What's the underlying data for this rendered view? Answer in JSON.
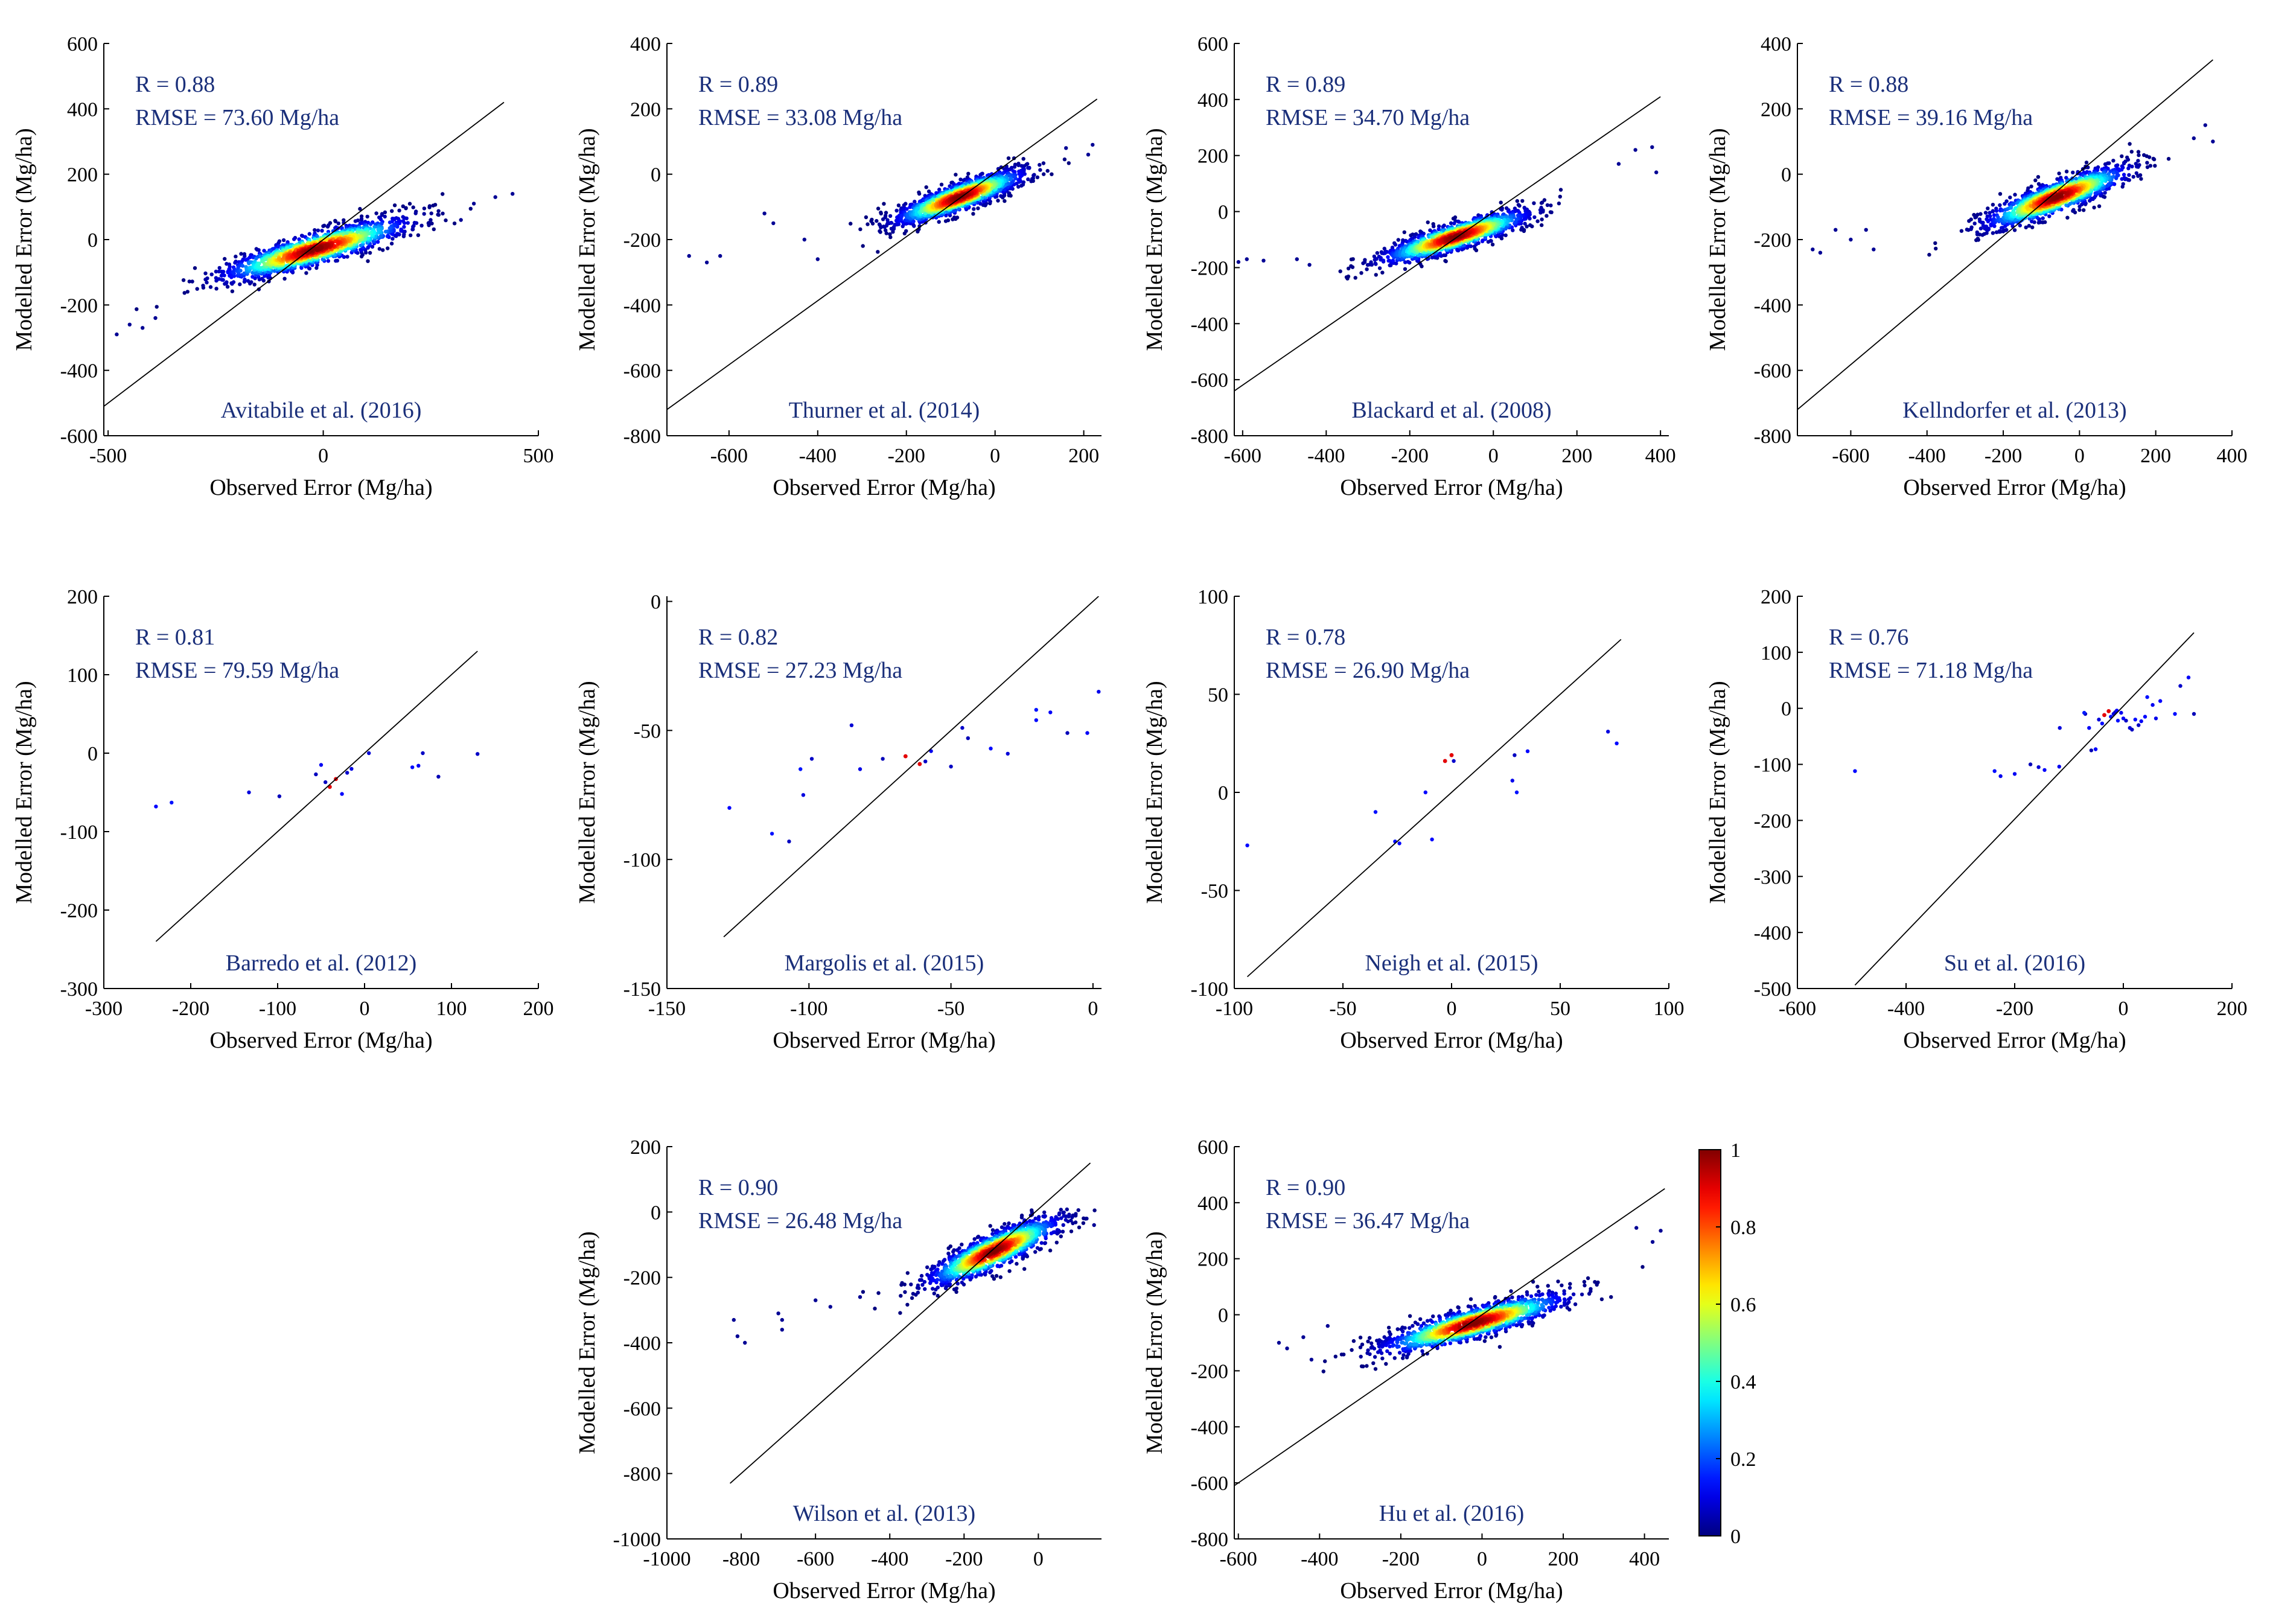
{
  "figure": {
    "xlabel": "Observed Error (Mg/ha)",
    "ylabel": "Modelled Error (Mg/ha)"
  },
  "colors": {
    "annotation": "#1a2f7a",
    "axis": "#000000",
    "line": "#000000"
  },
  "colorbar": {
    "min": 0,
    "max": 1,
    "ticks": [
      "0",
      "0.2",
      "0.4",
      "0.6",
      "0.8",
      "1"
    ],
    "colormap": "jet"
  },
  "chart_data": [
    {
      "type": "scatter",
      "title": "Avitabile et al. (2016)",
      "r": "R = 0.88",
      "rmse": "RMSE = 73.60 Mg/ha",
      "xlim": [
        -510,
        500
      ],
      "ylim": [
        -600,
        600
      ],
      "xticks": [
        -500,
        0,
        500
      ],
      "yticks": [
        -600,
        -400,
        -200,
        0,
        200,
        400,
        600
      ],
      "x_range": [
        -480,
        480
      ],
      "y_range": [
        -280,
        150
      ],
      "cluster": [
        -20,
        -30
      ],
      "spread": [
        110,
        45
      ],
      "n_points": 1300,
      "outliers": [
        [
          -480,
          -290
        ],
        [
          -450,
          -260
        ],
        [
          -420,
          -270
        ],
        [
          -390,
          -240
        ],
        [
          350,
          110
        ],
        [
          440,
          140
        ],
        [
          400,
          130
        ],
        [
          320,
          60
        ]
      ],
      "line": [
        [
          -510,
          -510
        ],
        [
          420,
          420
        ]
      ]
    },
    {
      "type": "scatter",
      "title": "Thurner et al. (2014)",
      "r": "R = 0.89",
      "rmse": "RMSE = 33.08 Mg/ha",
      "xlim": [
        -740,
        240
      ],
      "ylim": [
        -800,
        400
      ],
      "xticks": [
        -600,
        -400,
        -200,
        0,
        200
      ],
      "yticks": [
        -800,
        -600,
        -400,
        -200,
        0,
        200,
        400
      ],
      "x_range": [
        -690,
        230
      ],
      "y_range": [
        -300,
        100
      ],
      "cluster": [
        -80,
        -70
      ],
      "spread": [
        75,
        40
      ],
      "n_points": 1300,
      "outliers": [
        [
          -690,
          -250
        ],
        [
          -650,
          -270
        ],
        [
          -620,
          -250
        ],
        [
          -520,
          -120
        ],
        [
          -500,
          -150
        ],
        [
          -430,
          -200
        ],
        [
          -400,
          -260
        ],
        [
          160,
          80
        ],
        [
          210,
          60
        ],
        [
          220,
          90
        ]
      ],
      "line": [
        [
          -740,
          -720
        ],
        [
          230,
          230
        ]
      ]
    },
    {
      "type": "scatter",
      "title": "Blackard et al. (2008)",
      "r": "R = 0.89",
      "rmse": "RMSE = 34.70 Mg/ha",
      "xlim": [
        -620,
        420
      ],
      "ylim": [
        -800,
        600
      ],
      "xticks": [
        -600,
        -400,
        -200,
        0,
        200,
        400
      ],
      "yticks": [
        -800,
        -600,
        -400,
        -200,
        0,
        200,
        400,
        600
      ],
      "x_range": [
        -600,
        400
      ],
      "y_range": [
        -300,
        230
      ],
      "cluster": [
        -90,
        -90
      ],
      "spread": [
        90,
        45
      ],
      "n_points": 1300,
      "outliers": [
        [
          -610,
          -180
        ],
        [
          -590,
          -170
        ],
        [
          -550,
          -175
        ],
        [
          -470,
          -170
        ],
        [
          -440,
          -190
        ],
        [
          340,
          220
        ],
        [
          380,
          230
        ],
        [
          390,
          140
        ],
        [
          300,
          170
        ]
      ],
      "line": [
        [
          -620,
          -640
        ],
        [
          400,
          410
        ]
      ]
    },
    {
      "type": "scatter",
      "title": "Kellndorfer  et al. (2013)",
      "r": "R = 0.88",
      "rmse": "RMSE = 39.16 Mg/ha",
      "xlim": [
        -740,
        400
      ],
      "ylim": [
        -800,
        400
      ],
      "xticks": [
        -600,
        -400,
        -200,
        0,
        200,
        400
      ],
      "yticks": [
        -800,
        -600,
        -400,
        -200,
        0,
        200,
        400
      ],
      "x_range": [
        -740,
        380
      ],
      "y_range": [
        -320,
        160
      ],
      "cluster": [
        -60,
        -70
      ],
      "spread": [
        95,
        45
      ],
      "n_points": 1300,
      "outliers": [
        [
          -700,
          -230
        ],
        [
          -680,
          -240
        ],
        [
          -640,
          -170
        ],
        [
          -600,
          -200
        ],
        [
          -560,
          -170
        ],
        [
          -540,
          -230
        ],
        [
          330,
          150
        ],
        [
          350,
          100
        ],
        [
          300,
          110
        ]
      ],
      "line": [
        [
          -740,
          -720
        ],
        [
          350,
          350
        ]
      ]
    },
    {
      "type": "scatter",
      "title": "Barredo et al. (2012)",
      "r": "R = 0.81",
      "rmse": "RMSE = 79.59 Mg/ha",
      "xlim": [
        -300,
        200
      ],
      "ylim": [
        -300,
        200
      ],
      "xticks": [
        -300,
        -200,
        -100,
        0,
        100,
        200
      ],
      "yticks": [
        -300,
        -200,
        -100,
        0,
        100,
        200
      ],
      "points": [
        [
          -240,
          -68
        ],
        [
          -222,
          -63
        ],
        [
          -133,
          -50
        ],
        [
          -98,
          -55
        ],
        [
          -56,
          -27
        ],
        [
          -50,
          -15
        ],
        [
          -45,
          -37
        ],
        [
          -40,
          -43
        ],
        [
          -33,
          -33
        ],
        [
          -26,
          -52
        ],
        [
          -20,
          -25
        ],
        [
          -15,
          -20
        ],
        [
          5,
          0
        ],
        [
          55,
          -18
        ],
        [
          62,
          -16
        ],
        [
          67,
          0
        ],
        [
          85,
          -30
        ],
        [
          130,
          -1
        ]
      ],
      "line": [
        [
          -240,
          -240
        ],
        [
          130,
          130
        ]
      ]
    },
    {
      "type": "scatter",
      "title": "Margolis et al. (2015)",
      "r": "R = 0.82",
      "rmse": "RMSE = 27.23 Mg/ha",
      "xlim": [
        -150,
        3
      ],
      "ylim": [
        -150,
        2
      ],
      "xticks": [
        -150,
        -100,
        -50,
        0
      ],
      "yticks": [
        -150,
        -100,
        -50,
        0
      ],
      "points": [
        [
          -128,
          -80
        ],
        [
          -113,
          -90
        ],
        [
          -107,
          -93
        ],
        [
          -103,
          -65
        ],
        [
          -102,
          -75
        ],
        [
          -99,
          -61
        ],
        [
          -85,
          -48
        ],
        [
          -82,
          -65
        ],
        [
          -74,
          -61
        ],
        [
          -66,
          -60
        ],
        [
          -61,
          -63
        ],
        [
          -59,
          -62
        ],
        [
          -57,
          -58
        ],
        [
          -50,
          -64
        ],
        [
          -46,
          -49
        ],
        [
          -44,
          -53
        ],
        [
          -36,
          -57
        ],
        [
          -30,
          -59
        ],
        [
          -20,
          -42
        ],
        [
          -20,
          -46
        ],
        [
          -15,
          -43
        ],
        [
          -9,
          -51
        ],
        [
          -2,
          -51
        ],
        [
          2,
          -35
        ]
      ],
      "line": [
        [
          -130,
          -130
        ],
        [
          2,
          2
        ]
      ]
    },
    {
      "type": "scatter",
      "title": "Neigh et al. (2015)",
      "r": "R = 0.78",
      "rmse": "RMSE = 26.90 Mg/ha",
      "xlim": [
        -100,
        100
      ],
      "ylim": [
        -100,
        100
      ],
      "xticks": [
        -100,
        -50,
        0,
        50,
        100
      ],
      "yticks": [
        -100,
        -50,
        0,
        50,
        100
      ],
      "points": [
        [
          -94,
          -27
        ],
        [
          -35,
          -10
        ],
        [
          -26,
          -25
        ],
        [
          -24,
          -26
        ],
        [
          -12,
          0
        ],
        [
          -9,
          -24
        ],
        [
          -3,
          16
        ],
        [
          0,
          19
        ],
        [
          1,
          16
        ],
        [
          28,
          6
        ],
        [
          29,
          19
        ],
        [
          30,
          0
        ],
        [
          35,
          21
        ],
        [
          72,
          31
        ],
        [
          76,
          25
        ]
      ],
      "line": [
        [
          -94,
          -94
        ],
        [
          78,
          78
        ]
      ]
    },
    {
      "type": "scatter",
      "title": "Su et al. (2016)",
      "r": "R = 0.76",
      "rmse": "RMSE = 71.18 Mg/ha",
      "xlim": [
        -600,
        200
      ],
      "ylim": [
        -500,
        200
      ],
      "xticks": [
        -600,
        -400,
        -200,
        0,
        200
      ],
      "yticks": [
        -500,
        -400,
        -300,
        -200,
        -100,
        0,
        100,
        200
      ],
      "points": [
        [
          -494,
          -112
        ],
        [
          -237,
          -112
        ],
        [
          -226,
          -121
        ],
        [
          -200,
          -117
        ],
        [
          -171,
          -100
        ],
        [
          -156,
          -105
        ],
        [
          -145,
          -110
        ],
        [
          -118,
          -104
        ],
        [
          -117,
          -35
        ],
        [
          -72,
          -8
        ],
        [
          -70,
          -10
        ],
        [
          -63,
          -35
        ],
        [
          -59,
          -75
        ],
        [
          -51,
          -73
        ],
        [
          -45,
          -20
        ],
        [
          -39,
          -27
        ],
        [
          -35,
          -12
        ],
        [
          -27,
          -5
        ],
        [
          -23,
          -15
        ],
        [
          -18,
          -10
        ],
        [
          -15,
          -7
        ],
        [
          -12,
          -4
        ],
        [
          -10,
          -22
        ],
        [
          -4,
          -8
        ],
        [
          0,
          -18
        ],
        [
          5,
          -22
        ],
        [
          12,
          -35
        ],
        [
          16,
          -38
        ],
        [
          22,
          -20
        ],
        [
          28,
          -30
        ],
        [
          33,
          -23
        ],
        [
          40,
          -15
        ],
        [
          44,
          20
        ],
        [
          54,
          6
        ],
        [
          60,
          -18
        ],
        [
          68,
          13
        ],
        [
          95,
          -10
        ],
        [
          105,
          40
        ],
        [
          120,
          55
        ],
        [
          130,
          -10
        ]
      ],
      "line": [
        [
          -494,
          -494
        ],
        [
          130,
          135
        ]
      ]
    },
    {
      "type": "scatter",
      "title": "Wilson et al. (2013)",
      "r": "R = 0.90",
      "rmse": "RMSE = 26.48 Mg/ha",
      "xlim": [
        -1000,
        170
      ],
      "ylim": [
        -1000,
        200
      ],
      "xticks": [
        -1000,
        -800,
        -600,
        -400,
        -200,
        0
      ],
      "yticks": [
        -1000,
        -800,
        -600,
        -400,
        -200,
        0,
        200
      ],
      "x_range": [
        -830,
        160
      ],
      "y_range": [
        -410,
        20
      ],
      "cluster": [
        -120,
        -120
      ],
      "spread": [
        90,
        50
      ],
      "n_points": 1300,
      "outliers": [
        [
          -820,
          -330
        ],
        [
          -810,
          -380
        ],
        [
          -790,
          -400
        ],
        [
          -700,
          -310
        ],
        [
          -690,
          -330
        ],
        [
          -690,
          -360
        ],
        [
          -600,
          -270
        ],
        [
          -560,
          -290
        ],
        [
          -480,
          -260
        ],
        [
          130,
          -20
        ],
        [
          150,
          -40
        ]
      ],
      "line": [
        [
          -830,
          -830
        ],
        [
          140,
          150
        ]
      ]
    },
    {
      "type": "scatter",
      "title": "Hu et al. (2016)",
      "r": "R = 0.90",
      "rmse": "RMSE = 36.47 Mg/ha",
      "xlim": [
        -610,
        460
      ],
      "ylim": [
        -800,
        600
      ],
      "xticks": [
        -600,
        -400,
        -200,
        0,
        200,
        400
      ],
      "yticks": [
        -800,
        -600,
        -400,
        -200,
        0,
        200,
        400,
        600
      ],
      "x_range": [
        -510,
        450
      ],
      "y_range": [
        -230,
        320
      ],
      "cluster": [
        -20,
        -30
      ],
      "spread": [
        115,
        50
      ],
      "n_points": 1300,
      "outliers": [
        [
          -500,
          -100
        ],
        [
          -480,
          -120
        ],
        [
          -440,
          -80
        ],
        [
          -420,
          -160
        ],
        [
          -380,
          -40
        ],
        [
          380,
          310
        ],
        [
          420,
          260
        ],
        [
          440,
          300
        ]
      ],
      "line": [
        [
          -610,
          -610
        ],
        [
          450,
          450
        ]
      ]
    }
  ]
}
